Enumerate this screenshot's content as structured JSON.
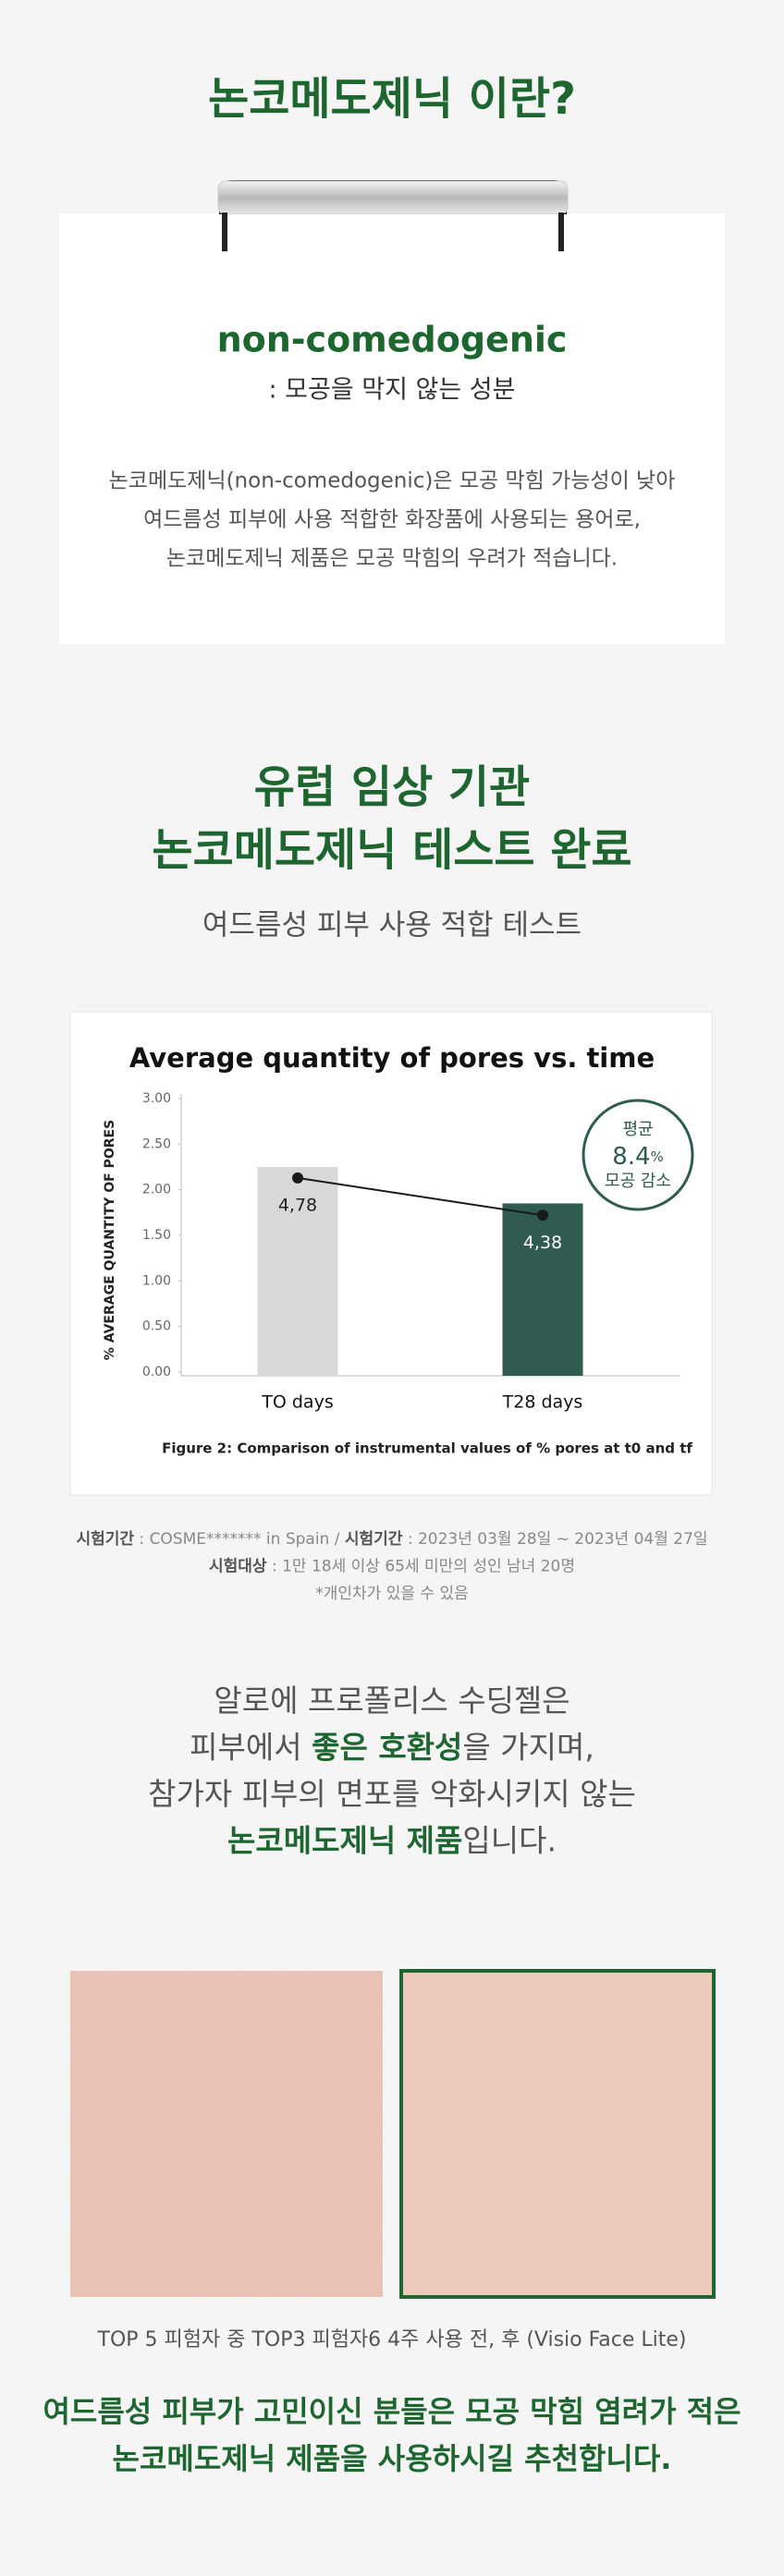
{
  "intro": {
    "title": "논코메도제닉 이란?",
    "term": "non-comedogenic",
    "definition": ": 모공을 막지 않는 성분",
    "paragraph": [
      "논코메도제닉(non-comedogenic)은 모공 막힘 가능성이 낮아",
      "여드름성 피부에 사용 적합한 화장품에 사용되는 용어로,",
      "논코메도제닉 제품은 모공 막힘의 우려가 적습니다."
    ]
  },
  "test": {
    "title": [
      "유럽 임상 기관",
      "논코메도제닉 테스트 완료"
    ],
    "subtitle": "여드름성 피부 사용 적합 테스트"
  },
  "chart_data": {
    "type": "bar",
    "title": "Average quantity of pores vs. time",
    "y_label": "% AVERAGE QUANTITY OF PORES",
    "caption": "Figure 2: Comparison of instrumental values of % pores at t0 and tf",
    "categories": [
      "TO days",
      "T28 days"
    ],
    "series": [
      {
        "type": "bar",
        "colors": [
          "#d9d9d9",
          "#2f5b50"
        ],
        "values": [
          2.25,
          1.85
        ]
      },
      {
        "type": "line",
        "color": "#1a1a1a",
        "values": [
          2.13,
          1.72
        ]
      }
    ],
    "annotations": [
      "4,78",
      "4,38"
    ],
    "ylim": [
      0,
      3
    ],
    "yticks": [
      {
        "value": 0,
        "label": "0.00"
      },
      {
        "value": 0.5,
        "label": "0.50"
      },
      {
        "value": 1,
        "label": "1.00"
      },
      {
        "value": 1.5,
        "label": "1.50"
      },
      {
        "value": 2,
        "label": "2.00"
      },
      {
        "value": 2.5,
        "label": "2.50"
      },
      {
        "value": 3,
        "label": "3.00"
      }
    ],
    "badge": {
      "top": "평균",
      "middle": [
        {
          "text": "8.4",
          "strong": true
        },
        {
          "text": "%"
        }
      ],
      "bottom": "모공 감소"
    }
  },
  "footnote": [
    [
      {
        "text": "시험기간",
        "strong": true
      },
      {
        "text": " : COSME******* in Spain / "
      },
      {
        "text": "시험기간",
        "strong": true
      },
      {
        "text": " : 2023년 03월 28일 ~ 2023년 04월 27일"
      }
    ],
    [
      {
        "text": "시험대상",
        "strong": true
      },
      {
        "text": " : 1만 18세 이상 65세 미만의 성인 남녀 20명"
      }
    ],
    [
      {
        "text": "*개인차가 있을 수 있음"
      }
    ]
  ],
  "statement": [
    [
      {
        "text": "알로에 프로폴리스 수딩젤은"
      }
    ],
    [
      {
        "text": "피부에서 "
      },
      {
        "text": "좋은 호환성",
        "strong": true
      },
      {
        "text": "을 가지며,"
      }
    ],
    [
      {
        "text": "참가자 피부의 면포를 악화시키지 않는"
      }
    ],
    [
      {
        "text": "논코메도제닉 제품",
        "strong": true
      },
      {
        "text": "입니다."
      }
    ]
  ],
  "photo_caption": "TOP 5 피험자 중  TOP3 피험자6 4주 사용 전, 후 (Visio Face Lite)",
  "closing": [
    "여드름성 피부가 고민이신 분들은 모공 막힘 염려가 적은",
    "논코메도제닉 제품을 사용하시길 추천합니다."
  ]
}
